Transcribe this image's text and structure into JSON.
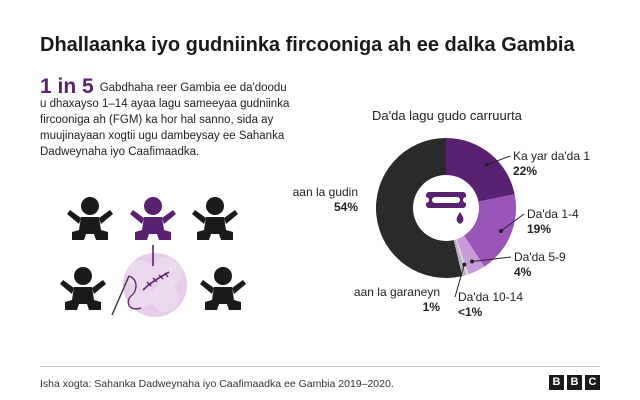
{
  "title": "Dhallaanka iyo gudniinka fircooniga ah ee dalka Gambia",
  "intro": {
    "highlight": "1 in 5",
    "text": "Gabdhaha reer Gambia ee da'doodu u dhaxayso 1–14 ayaa lagu sameeyaa gudniinka fircooniga ah (FGM) ka hor hal sanno, sida ay muujinayaan xogtii ugu dambeysay ee Sahanka Dadweynaha iyo Caafimaadka."
  },
  "colors": {
    "accent": "#5b2171",
    "dark_segment": "#2a2a2a",
    "mid_segment": "#9a55b8",
    "light_segment": "#c99ad9",
    "pale_segment": "#e4cdee",
    "grey_segment": "#b8b8b8"
  },
  "chart_data": {
    "type": "pie",
    "variant": "donut",
    "title": "Da'da lagu gudo carruurta",
    "slices": [
      {
        "label": "Ka yar da'da 1",
        "value": 22,
        "value_label": "22%",
        "color": "#5b2171"
      },
      {
        "label": "Da'da 1-4",
        "value": 19,
        "value_label": "19%",
        "color": "#9a55b8"
      },
      {
        "label": "Da'da 5-9",
        "value": 4,
        "value_label": "4%",
        "color": "#c99ad9"
      },
      {
        "label": "Da'da 10-14",
        "value": 0.5,
        "value_label": "<1%",
        "color": "#e4cdee"
      },
      {
        "label": "aan la garaneyn",
        "value": 1,
        "value_label": "1%",
        "color": "#b8b8b8"
      },
      {
        "label": "aan la gudin",
        "value": 54,
        "value_label": "54%",
        "color": "#2a2a2a"
      }
    ],
    "center_icon": "razor-blade-icon"
  },
  "icons": [
    "baby-icon",
    "flower-icon",
    "needle-icon"
  ],
  "footer": {
    "source": "Isha xogta: Sahanka Dadweynaha iyo Caafimaadka ee Gambia 2019–2020.",
    "logo": [
      "B",
      "B",
      "C"
    ]
  }
}
